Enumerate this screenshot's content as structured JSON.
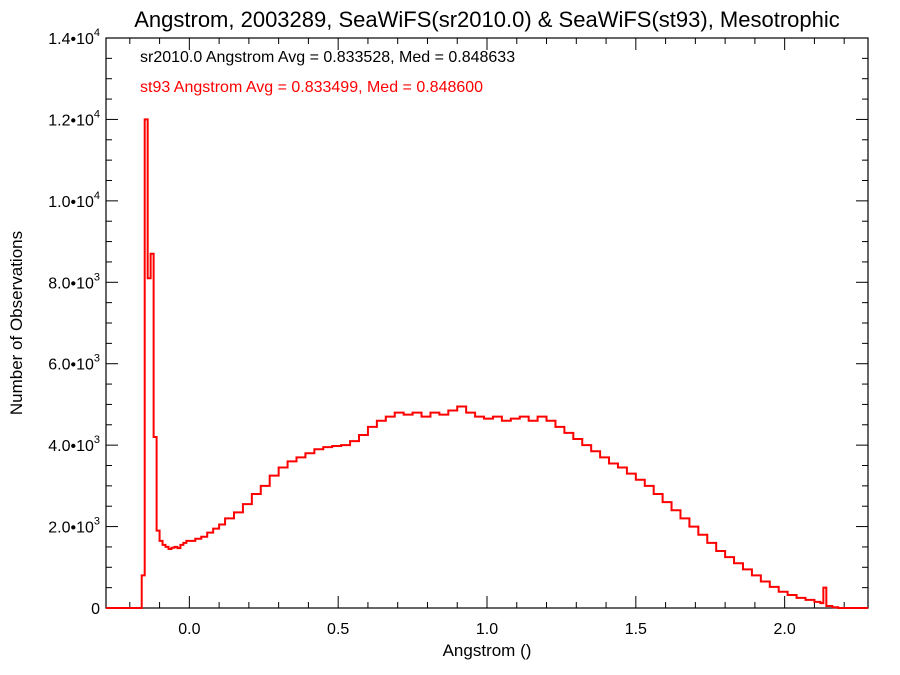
{
  "chart_data": {
    "type": "line",
    "title": "Angstrom, 2003289, SeaWiFS(sr2010.0) & SeaWiFS(st93), Mesotrophic",
    "xlabel": "Angstrom ()",
    "ylabel": "Number of Observations",
    "xlim": [
      -0.28,
      2.28
    ],
    "ylim": [
      0,
      14000
    ],
    "x_ticks": [
      {
        "value": 0.0,
        "label": "0.0"
      },
      {
        "value": 0.5,
        "label": "0.5"
      },
      {
        "value": 1.0,
        "label": "1.0"
      },
      {
        "value": 1.5,
        "label": "1.5"
      },
      {
        "value": 2.0,
        "label": "2.0"
      }
    ],
    "y_ticks": [
      {
        "value": 0,
        "mant": "0",
        "exp": ""
      },
      {
        "value": 2000,
        "mant": "2.0•10",
        "exp": "3"
      },
      {
        "value": 4000,
        "mant": "4.0•10",
        "exp": "3"
      },
      {
        "value": 6000,
        "mant": "6.0•10",
        "exp": "3"
      },
      {
        "value": 8000,
        "mant": "8.0•10",
        "exp": "3"
      },
      {
        "value": 10000,
        "mant": "1.0•10",
        "exp": "4"
      },
      {
        "value": 12000,
        "mant": "1.2•10",
        "exp": "4"
      },
      {
        "value": 14000,
        "mant": "1.4•10",
        "exp": "4"
      }
    ],
    "annotations": [
      {
        "text": "sr2010.0 Angstrom Avg = 0.833528, Med = 0.848633",
        "color": "#000000"
      },
      {
        "text": "st93 Angstrom Avg = 0.833499, Med = 0.848600",
        "color": "#ff0000"
      }
    ],
    "grid": false,
    "series": [
      {
        "color": "#ff0000",
        "style": "step",
        "points": [
          [
            -0.28,
            0
          ],
          [
            -0.17,
            0
          ],
          [
            -0.16,
            800
          ],
          [
            -0.15,
            12000
          ],
          [
            -0.14,
            8100
          ],
          [
            -0.13,
            8700
          ],
          [
            -0.12,
            4200
          ],
          [
            -0.11,
            1900
          ],
          [
            -0.1,
            1650
          ],
          [
            -0.09,
            1550
          ],
          [
            -0.08,
            1500
          ],
          [
            -0.07,
            1450
          ],
          [
            -0.06,
            1480
          ],
          [
            -0.05,
            1500
          ],
          [
            -0.04,
            1470
          ],
          [
            -0.03,
            1550
          ],
          [
            -0.02,
            1600
          ],
          [
            -0.01,
            1650
          ],
          [
            0.0,
            1650
          ],
          [
            0.02,
            1700
          ],
          [
            0.04,
            1750
          ],
          [
            0.06,
            1850
          ],
          [
            0.08,
            1950
          ],
          [
            0.1,
            2050
          ],
          [
            0.12,
            2200
          ],
          [
            0.15,
            2350
          ],
          [
            0.18,
            2550
          ],
          [
            0.21,
            2800
          ],
          [
            0.24,
            3000
          ],
          [
            0.27,
            3250
          ],
          [
            0.3,
            3450
          ],
          [
            0.33,
            3600
          ],
          [
            0.36,
            3700
          ],
          [
            0.39,
            3800
          ],
          [
            0.42,
            3900
          ],
          [
            0.45,
            3950
          ],
          [
            0.48,
            3980
          ],
          [
            0.51,
            4000
          ],
          [
            0.54,
            4100
          ],
          [
            0.57,
            4250
          ],
          [
            0.6,
            4450
          ],
          [
            0.63,
            4600
          ],
          [
            0.66,
            4700
          ],
          [
            0.69,
            4800
          ],
          [
            0.72,
            4750
          ],
          [
            0.75,
            4800
          ],
          [
            0.78,
            4700
          ],
          [
            0.81,
            4800
          ],
          [
            0.84,
            4750
          ],
          [
            0.87,
            4850
          ],
          [
            0.9,
            4950
          ],
          [
            0.93,
            4800
          ],
          [
            0.96,
            4700
          ],
          [
            0.99,
            4650
          ],
          [
            1.02,
            4700
          ],
          [
            1.05,
            4600
          ],
          [
            1.08,
            4650
          ],
          [
            1.11,
            4700
          ],
          [
            1.14,
            4600
          ],
          [
            1.17,
            4700
          ],
          [
            1.2,
            4600
          ],
          [
            1.23,
            4450
          ],
          [
            1.26,
            4300
          ],
          [
            1.29,
            4150
          ],
          [
            1.32,
            4000
          ],
          [
            1.35,
            3850
          ],
          [
            1.38,
            3700
          ],
          [
            1.41,
            3550
          ],
          [
            1.44,
            3450
          ],
          [
            1.47,
            3300
          ],
          [
            1.5,
            3150
          ],
          [
            1.53,
            3000
          ],
          [
            1.56,
            2800
          ],
          [
            1.59,
            2600
          ],
          [
            1.62,
            2400
          ],
          [
            1.65,
            2200
          ],
          [
            1.68,
            2000
          ],
          [
            1.71,
            1800
          ],
          [
            1.74,
            1600
          ],
          [
            1.77,
            1400
          ],
          [
            1.8,
            1250
          ],
          [
            1.83,
            1100
          ],
          [
            1.86,
            950
          ],
          [
            1.89,
            800
          ],
          [
            1.92,
            650
          ],
          [
            1.95,
            520
          ],
          [
            1.98,
            400
          ],
          [
            2.01,
            320
          ],
          [
            2.04,
            250
          ],
          [
            2.07,
            200
          ],
          [
            2.1,
            150
          ],
          [
            2.12,
            120
          ],
          [
            2.13,
            500
          ],
          [
            2.14,
            50
          ],
          [
            2.16,
            20
          ],
          [
            2.18,
            0
          ],
          [
            2.28,
            0
          ]
        ]
      }
    ]
  }
}
